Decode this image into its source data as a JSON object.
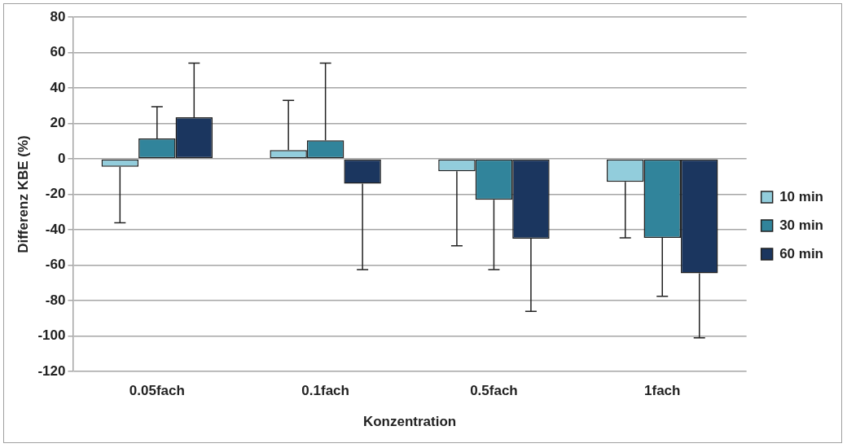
{
  "chart_data": {
    "type": "bar",
    "xlabel": "Konzentration",
    "ylabel": "Differenz KBE (%)",
    "categories": [
      "0.05fach",
      "0.1fach",
      "0.5fach",
      "1fach"
    ],
    "series": [
      {
        "name": "10 min",
        "color": "#92cddc",
        "values": [
          -4.5,
          5,
          -7,
          -13
        ],
        "errors": [
          [
            -36,
            -4.5
          ],
          [
            5,
            33
          ],
          [
            -49,
            -7
          ],
          [
            -44.5,
            -13
          ]
        ]
      },
      {
        "name": "30 min",
        "color": "#31849b",
        "values": [
          11.5,
          10.5,
          -23,
          -44.5
        ],
        "errors": [
          [
            11.5,
            29.5
          ],
          [
            10.5,
            54
          ],
          [
            -62.5,
            -23
          ],
          [
            -77.5,
            -44.5
          ]
        ]
      },
      {
        "name": "60 min",
        "color": "#1b365f",
        "values": [
          23.5,
          -14,
          -45,
          -64.5
        ],
        "errors": [
          [
            23.5,
            54
          ],
          [
            -62.5,
            -14
          ],
          [
            -86,
            -45
          ],
          [
            -101,
            -64.5
          ]
        ]
      }
    ],
    "ylim": [
      -120,
      80
    ],
    "yticks": [
      -120,
      -100,
      -80,
      -60,
      -40,
      -20,
      0,
      20,
      40,
      60,
      80
    ],
    "grid": "y",
    "legend": "right"
  }
}
